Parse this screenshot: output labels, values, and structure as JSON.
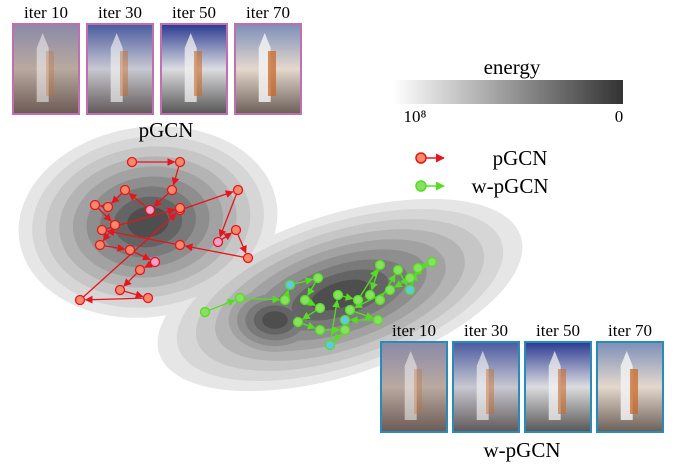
{
  "top_panel": {
    "iterations": [
      "iter 10",
      "iter 30",
      "iter 50",
      "iter 70"
    ],
    "label": "pGCN"
  },
  "colorbar": {
    "title": "energy",
    "min_label": "10⁸",
    "max_label": "0"
  },
  "legend": {
    "items": [
      "pGCN",
      "w-pGCN"
    ]
  },
  "bottom_panel": {
    "iterations": [
      "iter 10",
      "iter 30",
      "iter 50",
      "iter 70"
    ],
    "label": "w-pGCN"
  }
}
